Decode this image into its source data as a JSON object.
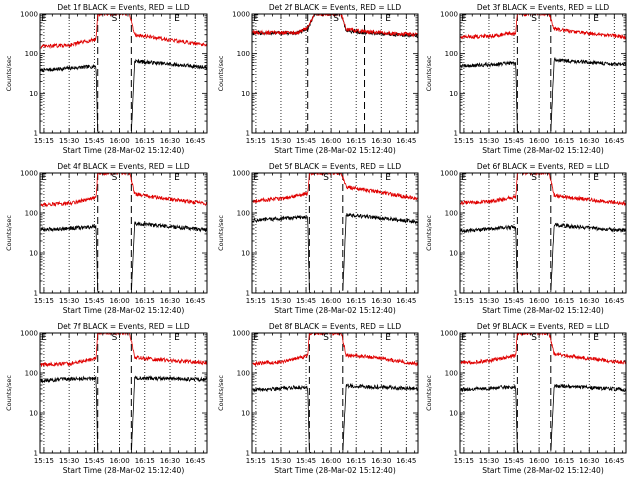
{
  "figure": {
    "series_colors": {
      "events": "#000000",
      "lld": "#e00000"
    },
    "background": "#ffffff"
  },
  "chart_data": [
    {
      "type": "line",
      "title": "Det 1f BLACK = Events, RED = LLD",
      "xlabel": "Start Time (28-Mar-02 15:12:40)",
      "ylabel": "Counts/sec",
      "yscale": "log",
      "ylim": [
        1,
        1000
      ],
      "xlim": [
        "15:12:40",
        "16:52"
      ],
      "xticks": [
        "15:15",
        "15:30",
        "15:45",
        "16:00",
        "16:15",
        "16:30",
        "16:45"
      ],
      "yticks": [
        "1",
        "10",
        "100",
        "1000"
      ],
      "markers": [
        "E",
        "S",
        "E"
      ],
      "series": [
        {
          "name": "",
          "color": "#000000",
          "x": [
            "15:13",
            "15:46",
            "15:47",
            "15:48",
            "15:50",
            "16:06",
            "16:07",
            "16:09",
            "16:52"
          ],
          "y": [
            38,
            48,
            1,
            1,
            null,
            null,
            1,
            65,
            45
          ]
        },
        {
          "name": "",
          "color": "#e00000",
          "x": [
            "15:13",
            "15:30",
            "15:46",
            "15:47",
            "15:50",
            "16:06",
            "16:09",
            "16:20",
            "16:52"
          ],
          "y": [
            150,
            165,
            230,
            1000,
            1000,
            1000,
            300,
            260,
            160
          ]
        }
      ]
    },
    {
      "type": "line",
      "title": "Det 2f BLACK = Events, RED = LLD",
      "xlabel": "Start Time (28-Mar-02 15:12:40)",
      "ylabel": "Counts/sec",
      "yscale": "log",
      "ylim": [
        1,
        1000
      ],
      "xlim": [
        "15:12:40",
        "16:52"
      ],
      "xticks": [
        "15:15",
        "15:30",
        "15:45",
        "16:00",
        "16:15",
        "16:30",
        "16:45"
      ],
      "yticks": [
        "1",
        "10",
        "100",
        "1000"
      ],
      "markers": [
        "E",
        "S",
        "E"
      ],
      "series": [
        {
          "name": "",
          "color": "#000000",
          "x": [
            "15:13",
            "15:40",
            "15:46",
            "15:50",
            "16:06",
            "16:09",
            "16:20",
            "16:52"
          ],
          "y": [
            330,
            330,
            420,
            1000,
            1000,
            380,
            340,
            280
          ]
        },
        {
          "name": "",
          "color": "#e00000",
          "x": [
            "15:13",
            "15:40",
            "15:46",
            "15:50",
            "16:06",
            "16:09",
            "16:20",
            "16:52"
          ],
          "y": [
            340,
            340,
            440,
            1000,
            1000,
            400,
            360,
            300
          ]
        }
      ]
    },
    {
      "type": "line",
      "title": "Det 3f BLACK = Events, RED = LLD",
      "xlabel": "Start Time (28-Mar-02 15:12:40)",
      "ylabel": "Counts/sec",
      "yscale": "log",
      "ylim": [
        1,
        1000
      ],
      "xlim": [
        "15:12:40",
        "16:52"
      ],
      "xticks": [
        "15:15",
        "15:30",
        "15:45",
        "16:00",
        "16:15",
        "16:30",
        "16:45"
      ],
      "yticks": [
        "1",
        "10",
        "100",
        "1000"
      ],
      "markers": [
        "E",
        "S",
        "E"
      ],
      "series": [
        {
          "name": "",
          "color": "#000000",
          "x": [
            "15:13",
            "15:46",
            "15:47",
            "15:48",
            "15:50",
            "16:06",
            "16:07",
            "16:09",
            "16:52"
          ],
          "y": [
            48,
            58,
            1,
            1,
            null,
            null,
            1,
            70,
            52
          ]
        },
        {
          "name": "",
          "color": "#e00000",
          "x": [
            "15:13",
            "15:30",
            "15:46",
            "15:47",
            "15:50",
            "16:06",
            "16:09",
            "16:20",
            "16:52"
          ],
          "y": [
            260,
            280,
            330,
            1000,
            1000,
            1000,
            420,
            360,
            260
          ]
        }
      ]
    },
    {
      "type": "line",
      "title": "Det 4f BLACK = Events, RED = LLD",
      "xlabel": "Start Time (28-Mar-02 15:12:40)",
      "ylabel": "Counts/sec",
      "yscale": "log",
      "ylim": [
        1,
        1000
      ],
      "xlim": [
        "15:12:40",
        "16:52"
      ],
      "xticks": [
        "15:15",
        "15:30",
        "15:45",
        "16:00",
        "16:15",
        "16:30",
        "16:45"
      ],
      "yticks": [
        "1",
        "10",
        "100",
        "1000"
      ],
      "markers": [
        "E",
        "S",
        "E"
      ],
      "series": [
        {
          "name": "",
          "color": "#000000",
          "x": [
            "15:13",
            "15:46",
            "15:47",
            "15:48",
            "15:50",
            "16:06",
            "16:07",
            "16:09",
            "16:52"
          ],
          "y": [
            38,
            45,
            1,
            1,
            null,
            null,
            1,
            55,
            38
          ]
        },
        {
          "name": "",
          "color": "#e00000",
          "x": [
            "15:13",
            "15:30",
            "15:46",
            "15:47",
            "15:50",
            "16:06",
            "16:09",
            "16:20",
            "16:52"
          ],
          "y": [
            160,
            175,
            240,
            1000,
            1000,
            1000,
            300,
            250,
            170
          ]
        }
      ]
    },
    {
      "type": "line",
      "title": "Det 5f BLACK = Events, RED = LLD",
      "xlabel": "Start Time (28-Mar-02 15:12:40)",
      "ylabel": "Counts/sec",
      "yscale": "log",
      "ylim": [
        1,
        1000
      ],
      "xlim": [
        "15:12:40",
        "16:52"
      ],
      "xticks": [
        "15:15",
        "15:30",
        "15:45",
        "16:00",
        "16:15",
        "16:30",
        "16:45"
      ],
      "yticks": [
        "1",
        "10",
        "100",
        "1000"
      ],
      "markers": [
        "E",
        "S",
        "E"
      ],
      "series": [
        {
          "name": "",
          "color": "#000000",
          "x": [
            "15:13",
            "15:46",
            "15:47",
            "15:48",
            "15:50",
            "16:06",
            "16:07",
            "16:09",
            "16:52"
          ],
          "y": [
            65,
            80,
            1,
            1,
            null,
            null,
            1,
            90,
            60
          ]
        },
        {
          "name": "",
          "color": "#e00000",
          "x": [
            "15:13",
            "15:30",
            "15:46",
            "15:47",
            "15:50",
            "16:06",
            "16:09",
            "16:20",
            "16:52"
          ],
          "y": [
            200,
            230,
            300,
            1000,
            1000,
            1000,
            450,
            380,
            230
          ]
        }
      ]
    },
    {
      "type": "line",
      "title": "Det 6f BLACK = Events, RED = LLD",
      "xlabel": "Start Time (28-Mar-02 15:12:40)",
      "ylabel": "Counts/sec",
      "yscale": "log",
      "ylim": [
        1,
        1000
      ],
      "xlim": [
        "15:12:40",
        "16:52"
      ],
      "xticks": [
        "15:15",
        "15:30",
        "15:45",
        "16:00",
        "16:15",
        "16:30",
        "16:45"
      ],
      "yticks": [
        "1",
        "10",
        "100",
        "1000"
      ],
      "markers": [
        "E",
        "S",
        "E"
      ],
      "series": [
        {
          "name": "",
          "color": "#000000",
          "x": [
            "15:13",
            "15:46",
            "15:47",
            "15:48",
            "15:50",
            "16:06",
            "16:07",
            "16:09",
            "16:52"
          ],
          "y": [
            35,
            45,
            1,
            1,
            null,
            null,
            1,
            50,
            36
          ]
        },
        {
          "name": "",
          "color": "#e00000",
          "x": [
            "15:13",
            "15:30",
            "15:46",
            "15:47",
            "15:50",
            "16:06",
            "16:09",
            "16:20",
            "16:52"
          ],
          "y": [
            180,
            190,
            250,
            1000,
            1000,
            1000,
            280,
            240,
            170
          ]
        }
      ]
    },
    {
      "type": "line",
      "title": "Det 7f BLACK = Events, RED = LLD",
      "xlabel": "Start Time (28-Mar-02 15:12:40)",
      "ylabel": "Counts/sec",
      "yscale": "log",
      "ylim": [
        1,
        1000
      ],
      "xlim": [
        "15:12:40",
        "16:52"
      ],
      "xticks": [
        "15:15",
        "15:30",
        "15:45",
        "16:00",
        "16:15",
        "16:30",
        "16:45"
      ],
      "yticks": [
        "1",
        "10",
        "100",
        "1000"
      ],
      "markers": [
        "E",
        "S",
        "E"
      ],
      "series": [
        {
          "name": "",
          "color": "#000000",
          "x": [
            "15:13",
            "15:46",
            "15:47",
            "15:48",
            "15:50",
            "16:06",
            "16:07",
            "16:09",
            "16:52"
          ],
          "y": [
            65,
            75,
            1,
            1,
            null,
            null,
            1,
            75,
            68
          ]
        },
        {
          "name": "",
          "color": "#e00000",
          "x": [
            "15:13",
            "15:30",
            "15:46",
            "15:47",
            "15:50",
            "16:06",
            "16:09",
            "16:20",
            "16:52"
          ],
          "y": [
            160,
            170,
            230,
            1000,
            1000,
            1000,
            250,
            220,
            180
          ]
        }
      ]
    },
    {
      "type": "line",
      "title": "Det 8f BLACK = Events, RED = LLD",
      "xlabel": "Start Time (28-Mar-02 15:12:40)",
      "ylabel": "Counts/sec",
      "yscale": "log",
      "ylim": [
        1,
        1000
      ],
      "xlim": [
        "15:12:40",
        "16:52"
      ],
      "xticks": [
        "15:15",
        "15:30",
        "15:45",
        "16:00",
        "16:15",
        "16:30",
        "16:45"
      ],
      "yticks": [
        "1",
        "10",
        "100",
        "1000"
      ],
      "markers": [
        "E",
        "S",
        "E"
      ],
      "series": [
        {
          "name": "",
          "color": "#000000",
          "x": [
            "15:13",
            "15:46",
            "15:47",
            "15:48",
            "15:50",
            "16:06",
            "16:07",
            "16:09",
            "16:52"
          ],
          "y": [
            38,
            45,
            1,
            1,
            null,
            null,
            1,
            48,
            40
          ]
        },
        {
          "name": "",
          "color": "#e00000",
          "x": [
            "15:13",
            "15:30",
            "15:46",
            "15:47",
            "15:50",
            "16:06",
            "16:09",
            "16:20",
            "16:52"
          ],
          "y": [
            170,
            190,
            270,
            1000,
            1000,
            1000,
            280,
            260,
            170
          ]
        }
      ]
    },
    {
      "type": "line",
      "title": "Det 9f BLACK = Events, RED = LLD",
      "xlabel": "Start Time (28-Mar-02 15:12:40)",
      "ylabel": "Counts/sec",
      "yscale": "log",
      "ylim": [
        1,
        1000
      ],
      "xlim": [
        "15:12:40",
        "16:52"
      ],
      "xticks": [
        "15:15",
        "15:30",
        "15:45",
        "16:00",
        "16:15",
        "16:30",
        "16:45"
      ],
      "yticks": [
        "1",
        "10",
        "100",
        "1000"
      ],
      "markers": [
        "E",
        "S",
        "E"
      ],
      "series": [
        {
          "name": "",
          "color": "#000000",
          "x": [
            "15:13",
            "15:46",
            "15:47",
            "15:48",
            "15:50",
            "16:06",
            "16:07",
            "16:09",
            "16:52"
          ],
          "y": [
            38,
            45,
            1,
            1,
            null,
            null,
            1,
            48,
            38
          ]
        },
        {
          "name": "",
          "color": "#e00000",
          "x": [
            "15:13",
            "15:30",
            "15:46",
            "15:47",
            "15:50",
            "16:06",
            "16:09",
            "16:20",
            "16:52"
          ],
          "y": [
            180,
            200,
            270,
            1000,
            1000,
            1000,
            300,
            260,
            180
          ]
        }
      ]
    }
  ]
}
